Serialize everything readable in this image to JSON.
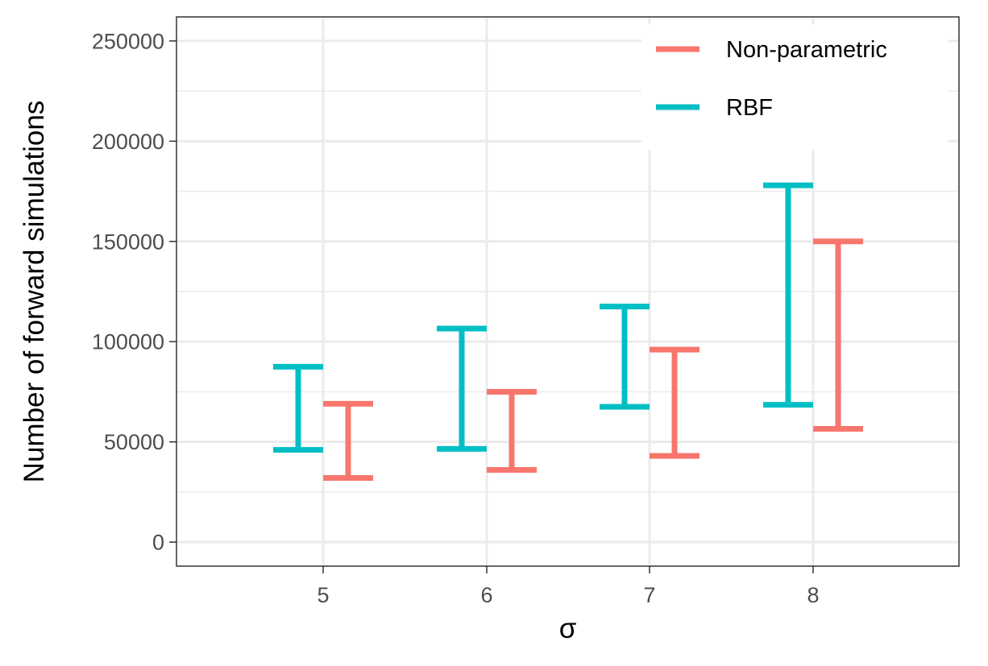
{
  "chart_data": {
    "type": "errorbar",
    "xlabel": "σ",
    "ylabel": "Number of forward simulations",
    "x_categories": [
      "5",
      "6",
      "7",
      "8"
    ],
    "ylim": [
      -12000,
      262000
    ],
    "y_ticks": [
      0,
      50000,
      100000,
      150000,
      200000,
      250000
    ],
    "y_tick_labels": [
      "0",
      "50000",
      "100000",
      "150000",
      "200000",
      "250000"
    ],
    "grid": true,
    "legend": {
      "position": "top-right"
    },
    "series": [
      {
        "name": "Non-parametric",
        "color": "#F8766D",
        "intervals": [
          {
            "x": "5",
            "low": 32000,
            "high": 69000
          },
          {
            "x": "6",
            "low": 36000,
            "high": 75000
          },
          {
            "x": "7",
            "low": 43000,
            "high": 96000
          },
          {
            "x": "8",
            "low": 56500,
            "high": 150000
          }
        ]
      },
      {
        "name": "RBF",
        "color": "#00BFC4",
        "intervals": [
          {
            "x": "5",
            "low": 46000,
            "high": 87500
          },
          {
            "x": "6",
            "low": 46500,
            "high": 106500
          },
          {
            "x": "7",
            "low": 67500,
            "high": 117500
          },
          {
            "x": "8",
            "low": 68500,
            "high": 178000
          }
        ]
      }
    ]
  }
}
